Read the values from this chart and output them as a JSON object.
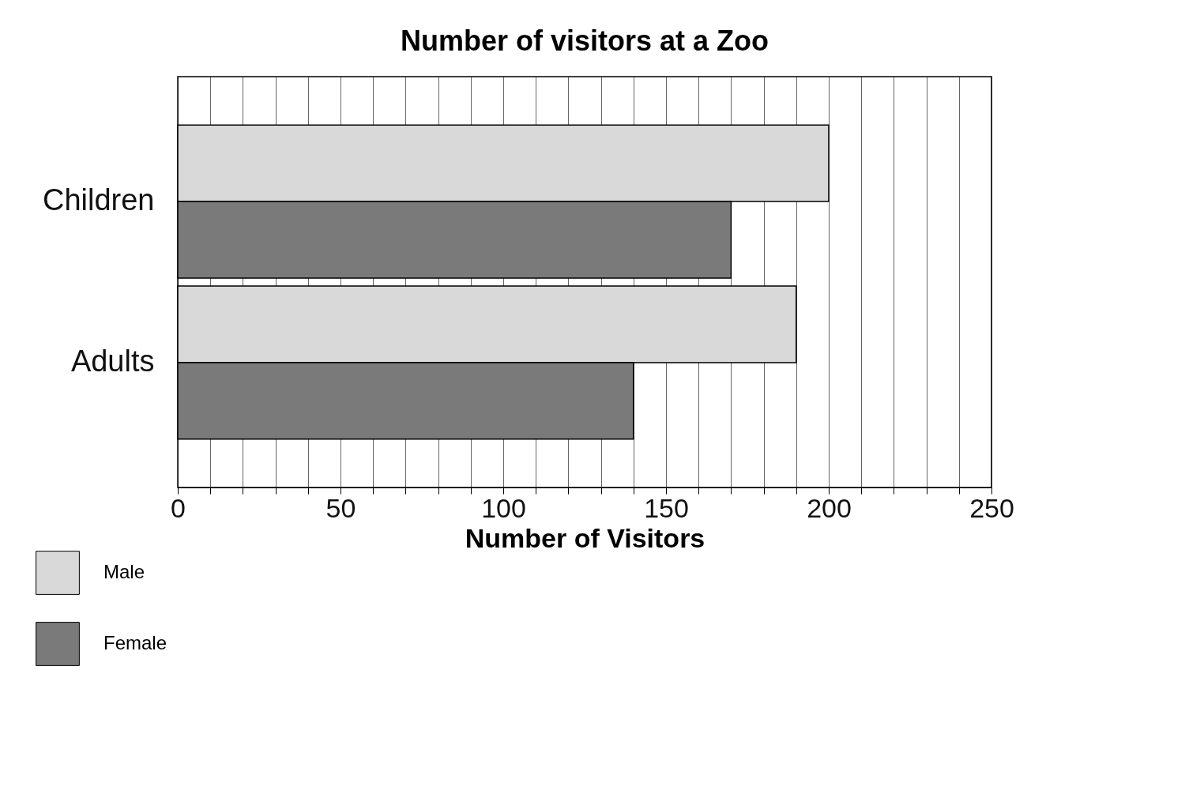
{
  "chart_data": {
    "type": "bar",
    "orientation": "horizontal",
    "title": "Number of visitors at a Zoo",
    "xlabel": "Number of Visitors",
    "categories": [
      "Children",
      "Adults"
    ],
    "series": [
      {
        "name": "Male",
        "color": "#d9d9d9",
        "values": [
          200,
          190
        ]
      },
      {
        "name": "Female",
        "color": "#7a7a7a",
        "values": [
          170,
          140
        ]
      }
    ],
    "xlim": [
      0,
      250
    ],
    "xticks": [
      0,
      {
        "value": 10,
        "label": null
      },
      {
        "value": 20,
        "label": null
      },
      {
        "value": 30,
        "label": null
      },
      {
        "value": 40,
        "label": null
      },
      50,
      {
        "value": 60,
        "label": null
      },
      {
        "value": 70,
        "label": null
      },
      {
        "value": 80,
        "label": null
      },
      {
        "value": 90,
        "label": null
      },
      100,
      {
        "value": 110,
        "label": null
      },
      {
        "value": 120,
        "label": null
      },
      {
        "value": 130,
        "label": null
      },
      {
        "value": 140,
        "label": null
      },
      150,
      {
        "value": 160,
        "label": null
      },
      {
        "value": 170,
        "label": null
      },
      {
        "value": 180,
        "label": null
      },
      {
        "value": 190,
        "label": null
      },
      200,
      {
        "value": 210,
        "label": null
      },
      {
        "value": 220,
        "label": null
      },
      {
        "value": 230,
        "label": null
      },
      {
        "value": 240,
        "label": null
      },
      250
    ],
    "grid": "x",
    "legend": "bottom left"
  }
}
